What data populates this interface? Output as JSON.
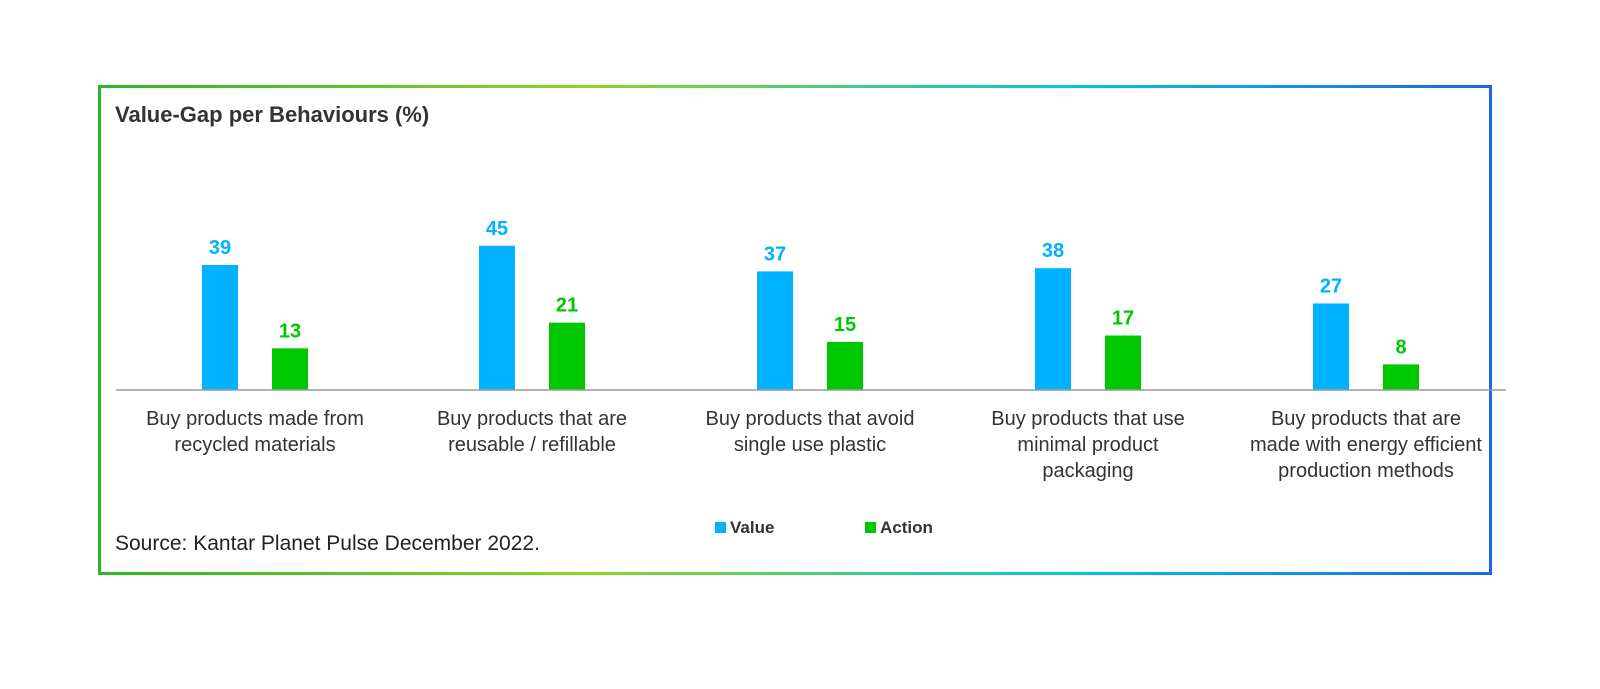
{
  "chart_data": {
    "type": "bar",
    "title": "Value-Gap per Behaviours (%)",
    "categories": [
      "Buy products made from recycled materials",
      "Buy products that are reusable / refillable",
      "Buy products that avoid single use plastic",
      "Buy products that use minimal product packaging",
      "Buy products that are made with energy efficient production methods"
    ],
    "category_lines": [
      [
        "Buy products made from",
        "recycled materials"
      ],
      [
        "Buy products that are",
        "reusable / refillable"
      ],
      [
        "Buy products that avoid",
        "single use plastic"
      ],
      [
        "Buy products that use",
        "minimal product",
        "packaging"
      ],
      [
        "Buy products that are",
        "made with energy efficient",
        "production methods"
      ]
    ],
    "series": [
      {
        "name": "Value",
        "values": [
          39,
          45,
          37,
          38,
          27
        ],
        "color": "#00B2FF"
      },
      {
        "name": "Action",
        "values": [
          13,
          21,
          15,
          17,
          8
        ],
        "color": "#00C800"
      }
    ],
    "ylim": [
      0,
      50
    ],
    "grid": false,
    "legend": "bottom-center",
    "xlabel": "",
    "ylabel": ""
  },
  "source": "Source: Kantar Planet Pulse December 2022.",
  "frame_gradient": [
    "#2BB52B",
    "#8CD61E",
    "#00C8DC",
    "#1E64E6"
  ]
}
